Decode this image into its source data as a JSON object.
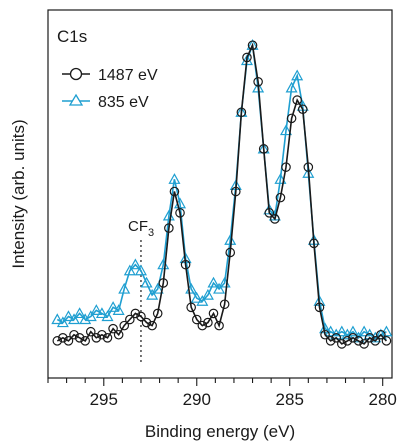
{
  "chart_data": {
    "type": "line",
    "title": "",
    "panel_label": "C1s",
    "xlabel": "Binding energy (eV)",
    "ylabel": "Intensity (arb. units)",
    "x_reversed": true,
    "xlim": [
      298,
      279.5
    ],
    "ylim": [
      0,
      1.05
    ],
    "y_ticks_shown": false,
    "xticks": [
      295,
      290,
      285,
      280
    ],
    "xtick_labels": [
      "295",
      "290",
      "285",
      "280"
    ],
    "legend_position": "top-left",
    "grid": false,
    "annotation": {
      "text": "CF",
      "subscript": "3",
      "x": 293.0
    },
    "series": [
      {
        "name": "1487 eV",
        "color": "#1a1a1a",
        "marker": "circle",
        "x": [
          297.5,
          297.2,
          296.9,
          296.6,
          296.3,
          296.0,
          295.7,
          295.4,
          295.1,
          294.8,
          294.5,
          294.2,
          293.9,
          293.6,
          293.3,
          293.0,
          292.7,
          292.4,
          292.1,
          291.8,
          291.5,
          291.2,
          290.9,
          290.6,
          290.3,
          290.0,
          289.7,
          289.4,
          289.1,
          288.8,
          288.5,
          288.2,
          287.9,
          287.6,
          287.3,
          287.0,
          286.7,
          286.4,
          286.1,
          285.8,
          285.5,
          285.2,
          284.9,
          284.6,
          284.3,
          284.0,
          283.7,
          283.4,
          283.1,
          282.8,
          282.5,
          282.2,
          281.9,
          281.6,
          281.3,
          281.0,
          280.7,
          280.4,
          280.1,
          279.8
        ],
        "y": [
          0.03,
          0.04,
          0.03,
          0.05,
          0.04,
          0.03,
          0.06,
          0.04,
          0.05,
          0.04,
          0.07,
          0.05,
          0.08,
          0.1,
          0.12,
          0.11,
          0.09,
          0.08,
          0.12,
          0.22,
          0.4,
          0.52,
          0.45,
          0.28,
          0.14,
          0.1,
          0.08,
          0.09,
          0.12,
          0.08,
          0.15,
          0.32,
          0.52,
          0.78,
          0.96,
          1.0,
          0.88,
          0.66,
          0.45,
          0.43,
          0.5,
          0.6,
          0.76,
          0.82,
          0.79,
          0.6,
          0.35,
          0.14,
          0.05,
          0.03,
          0.04,
          0.02,
          0.03,
          0.04,
          0.03,
          0.02,
          0.04,
          0.03,
          0.05,
          0.03
        ]
      },
      {
        "name": "835 eV",
        "color": "#1f9fd1",
        "marker": "triangle",
        "x": [
          297.5,
          297.2,
          296.9,
          296.6,
          296.3,
          296.0,
          295.7,
          295.4,
          295.1,
          294.8,
          294.5,
          294.2,
          293.9,
          293.6,
          293.3,
          293.0,
          292.7,
          292.4,
          292.1,
          291.8,
          291.5,
          291.2,
          290.9,
          290.6,
          290.3,
          290.0,
          289.7,
          289.4,
          289.1,
          288.8,
          288.5,
          288.2,
          287.9,
          287.6,
          287.3,
          287.0,
          286.7,
          286.4,
          286.1,
          285.8,
          285.5,
          285.2,
          284.9,
          284.6,
          284.3,
          284.0,
          283.7,
          283.4,
          283.1,
          282.8,
          282.5,
          282.2,
          281.9,
          281.6,
          281.3,
          281.0,
          280.7,
          280.4,
          280.1,
          279.8
        ],
        "y": [
          0.1,
          0.09,
          0.11,
          0.1,
          0.12,
          0.1,
          0.11,
          0.13,
          0.12,
          0.11,
          0.14,
          0.13,
          0.2,
          0.26,
          0.28,
          0.26,
          0.22,
          0.18,
          0.2,
          0.28,
          0.44,
          0.56,
          0.48,
          0.3,
          0.2,
          0.17,
          0.16,
          0.18,
          0.22,
          0.2,
          0.22,
          0.36,
          0.54,
          0.78,
          0.95,
          1.0,
          0.86,
          0.66,
          0.46,
          0.44,
          0.56,
          0.72,
          0.86,
          0.9,
          0.8,
          0.58,
          0.36,
          0.16,
          0.07,
          0.06,
          0.05,
          0.06,
          0.05,
          0.06,
          0.04,
          0.06,
          0.05,
          0.04,
          0.05,
          0.06
        ]
      }
    ]
  }
}
